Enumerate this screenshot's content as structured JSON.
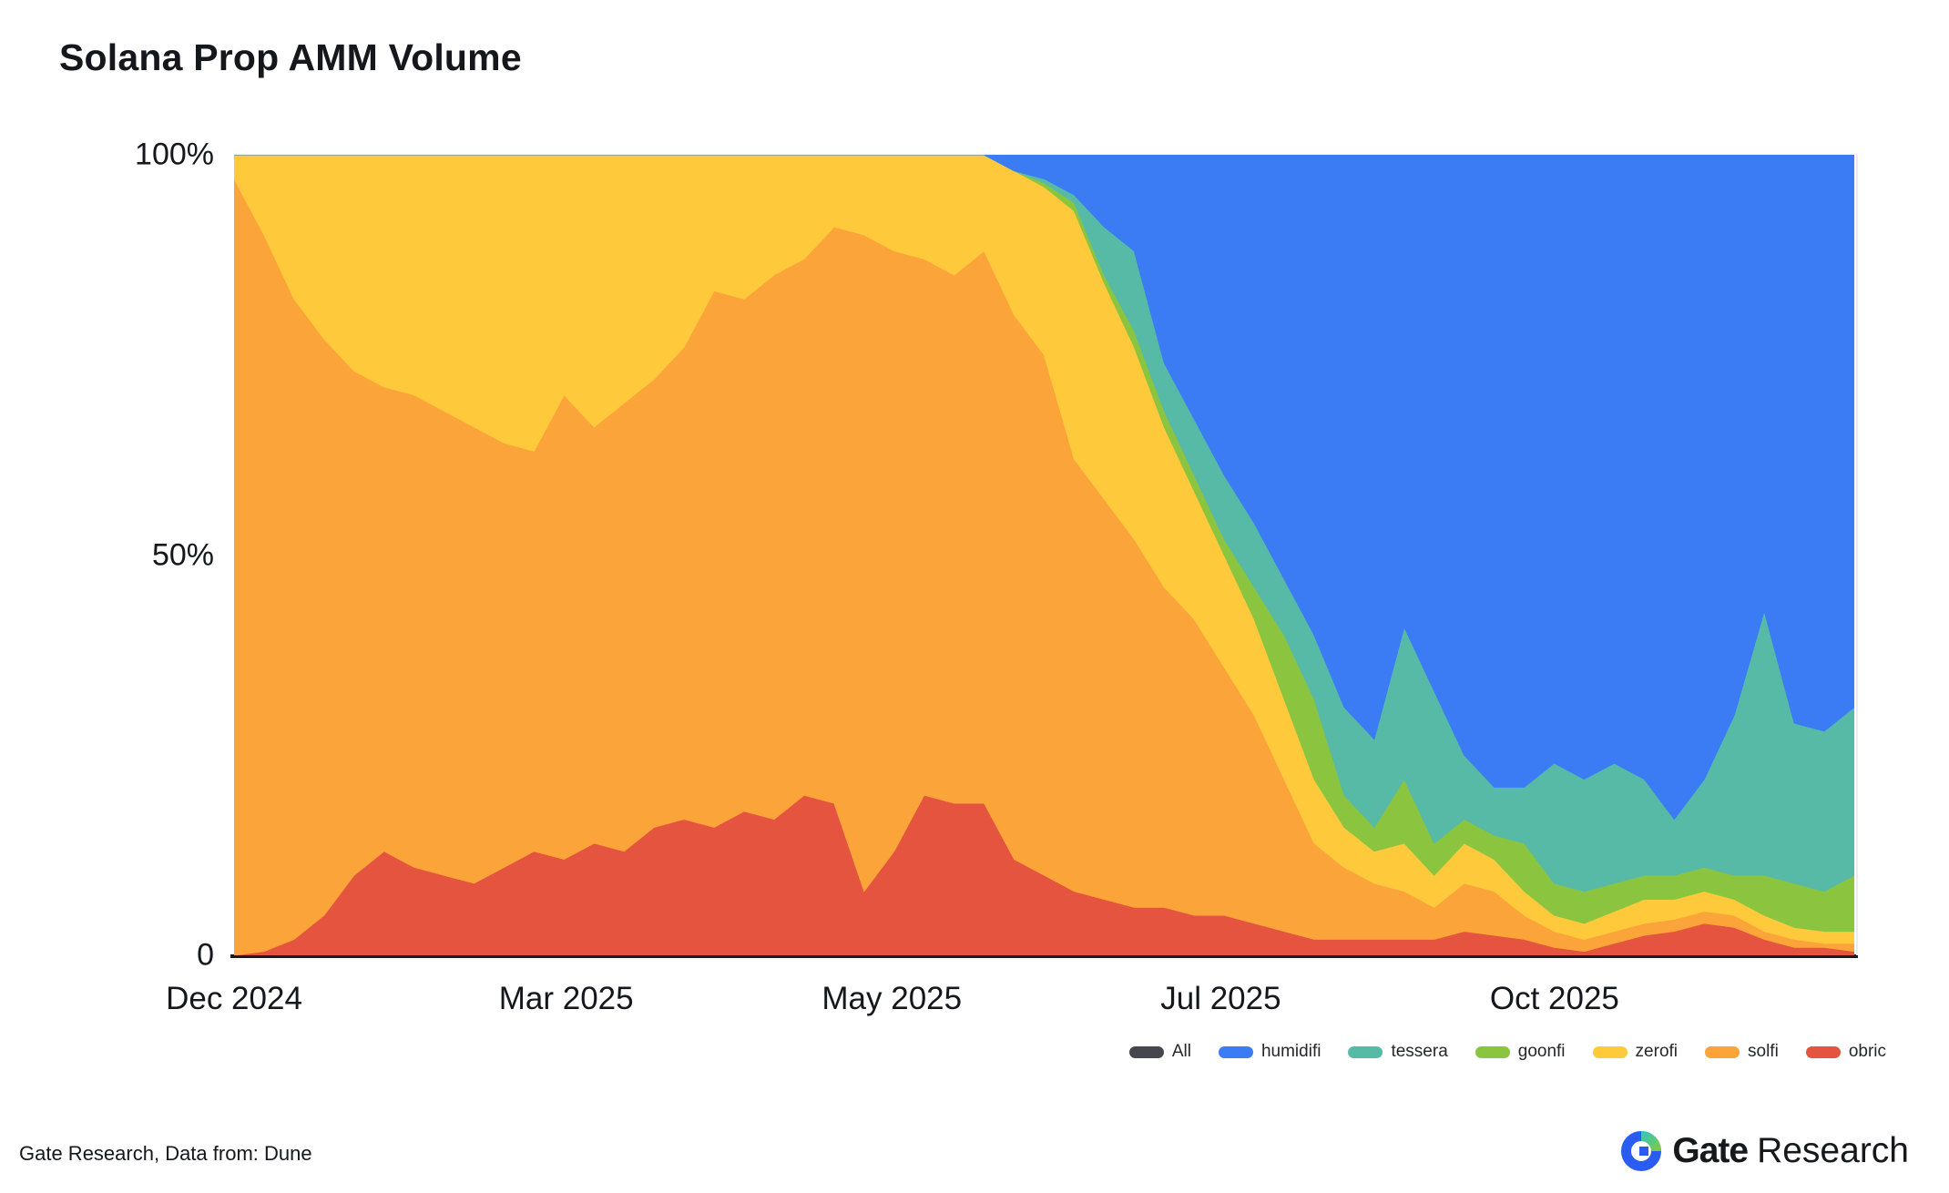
{
  "title": "Solana Prop AMM Volume",
  "footer": {
    "source": "Gate Research, Data from: Dune",
    "brand_bold": "Gate",
    "brand_regular": "Research"
  },
  "legend": {
    "items": [
      {
        "label": "All",
        "color": "#45464E"
      },
      {
        "label": "humidifi",
        "color": "#3B7CF5"
      },
      {
        "label": "tessera",
        "color": "#57BAA7"
      },
      {
        "label": "goonfi",
        "color": "#8BC540"
      },
      {
        "label": "zerofi",
        "color": "#FFC93C"
      },
      {
        "label": "solfi",
        "color": "#FAA43A"
      },
      {
        "label": "obric",
        "color": "#E4543F"
      }
    ]
  },
  "chart_data": {
    "type": "area",
    "stacked": true,
    "unit": "percent_share",
    "title": "Solana Prop AMM Volume",
    "grid": "horizontal",
    "legend_position": "bottom-right",
    "x_axis": {
      "start": "Dec 2024",
      "end": "Dec 2025",
      "ticks": [
        {
          "label": "Dec 2024",
          "pos": 0.0
        },
        {
          "label": "Mar 2025",
          "pos": 0.205
        },
        {
          "label": "May 2025",
          "pos": 0.406
        },
        {
          "label": "Jul 2025",
          "pos": 0.609
        },
        {
          "label": "Oct 2025",
          "pos": 0.815
        }
      ]
    },
    "y_axis": {
      "range": [
        0,
        100
      ],
      "ticks": [
        {
          "label": "0",
          "value": 0
        },
        {
          "label": "50%",
          "value": 50
        },
        {
          "label": "100%",
          "value": 100
        }
      ]
    },
    "series": [
      {
        "name": "obric",
        "color": "#E4543F",
        "values": [
          0,
          0.5,
          2,
          5,
          10,
          13,
          11,
          10,
          9,
          11,
          13,
          12,
          14,
          13,
          16,
          17,
          16,
          18,
          17,
          20,
          19,
          8,
          13,
          20,
          19,
          19,
          12,
          10,
          8,
          7,
          6,
          6,
          5,
          5,
          4,
          3,
          2,
          2,
          2,
          2,
          2,
          3,
          2.5,
          2,
          1,
          0.5,
          1.5,
          2.5,
          3,
          4,
          3.5,
          2,
          1,
          1,
          0.5
        ]
      },
      {
        "name": "solfi",
        "color": "#FAA43A",
        "values": [
          97,
          89.5,
          80,
          72,
          63,
          58,
          59,
          58,
          57,
          53,
          50,
          58,
          52,
          56,
          56,
          59,
          67,
          64,
          68,
          67,
          72,
          82,
          75,
          67,
          66,
          69,
          68,
          65,
          54,
          50,
          46,
          40,
          37,
          31,
          26,
          19,
          12,
          9,
          7,
          6,
          4,
          6,
          5.5,
          3,
          2,
          1.5,
          1.5,
          1.5,
          1.5,
          1.5,
          1.5,
          1,
          1,
          0.5,
          1
        ]
      },
      {
        "name": "zerofi",
        "color": "#FFC93C",
        "values": [
          3,
          10,
          18,
          23,
          27,
          29,
          30,
          32,
          34,
          36,
          37,
          30,
          34,
          31,
          28,
          24,
          17,
          18,
          15,
          13,
          9,
          10,
          12,
          13,
          15,
          12,
          18,
          21,
          31,
          27,
          24,
          20,
          16,
          14,
          12,
          10,
          8,
          5,
          4,
          6,
          4,
          5,
          4,
          3,
          2,
          2,
          2.5,
          3,
          2.5,
          2.5,
          2,
          2,
          1.5,
          1.5,
          1.5
        ]
      },
      {
        "name": "goonfi",
        "color": "#8BC540",
        "values": [
          0,
          0,
          0,
          0,
          0,
          0,
          0,
          0,
          0,
          0,
          0,
          0,
          0,
          0,
          0,
          0,
          0,
          0,
          0,
          0,
          0,
          0,
          0,
          0,
          0,
          0,
          0,
          0.5,
          1,
          1,
          2,
          2,
          2,
          2,
          4,
          8,
          10,
          4,
          3,
          8,
          4,
          3,
          3,
          6,
          4,
          4,
          3.5,
          3,
          3,
          3,
          3,
          5,
          5.5,
          5,
          7
        ]
      },
      {
        "name": "tessera",
        "color": "#57BAA7",
        "values": [
          0,
          0,
          0,
          0,
          0,
          0,
          0,
          0,
          0,
          0,
          0,
          0,
          0,
          0,
          0,
          0,
          0,
          0,
          0,
          0,
          0,
          0,
          0,
          0,
          0,
          0,
          0,
          0.5,
          1,
          6,
          10,
          6,
          7,
          8,
          8,
          7,
          8,
          11,
          11,
          19,
          19,
          8,
          6,
          7,
          15,
          14,
          15,
          12,
          7,
          11,
          20,
          33,
          20,
          20,
          21
        ]
      },
      {
        "name": "humidifi",
        "color": "#3B7CF5",
        "values": [
          0,
          0,
          0,
          0,
          0,
          0,
          0,
          0,
          0,
          0,
          0,
          0,
          0,
          0,
          0,
          0,
          0,
          0,
          0,
          0,
          0,
          0,
          0,
          0,
          0,
          0,
          2,
          3,
          5,
          9,
          12,
          26,
          33,
          40,
          46,
          53,
          60,
          69,
          73,
          59,
          67,
          75,
          79,
          79,
          76,
          78,
          76,
          78,
          83,
          78,
          70,
          57,
          71,
          72,
          69
        ]
      }
    ]
  }
}
